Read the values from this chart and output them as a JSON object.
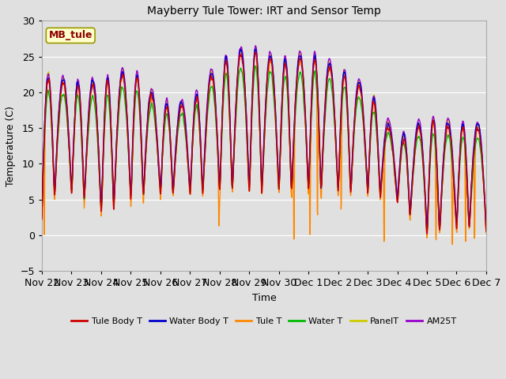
{
  "title": "Mayberry Tule Tower: IRT and Sensor Temp",
  "xlabel": "Time",
  "ylabel": "Temperature (C)",
  "ylim": [
    -5,
    30
  ],
  "series_labels": [
    "Tule Body T",
    "Water Body T",
    "Tule T",
    "Water T",
    "PanelT",
    "AM25T"
  ],
  "series_colors": [
    "#cc0000",
    "#0000cc",
    "#ff8800",
    "#00bb00",
    "#cccc00",
    "#9900cc"
  ],
  "bg_color": "#e0e0e0",
  "watermark_text": "MB_tule",
  "watermark_color": "#8b0000",
  "watermark_bg": "#ffffcc",
  "watermark_edge": "#999900",
  "xtick_labels": [
    "Nov 22",
    "Nov 23",
    "Nov 24",
    "Nov 25",
    "Nov 26",
    "Nov 27",
    "Nov 28",
    "Nov 29",
    "Nov 30",
    "Dec 1",
    "Dec 2",
    "Dec 3",
    "Dec 4",
    "Dec 5",
    "Dec 6",
    "Dec 7"
  ],
  "ytick_vals": [
    -5,
    0,
    5,
    10,
    15,
    20,
    25,
    30
  ],
  "n_days": 15,
  "pts_per_day": 96,
  "day_peaks": [
    22,
    21,
    21,
    23,
    18,
    18,
    24,
    26,
    24,
    25,
    23,
    20,
    13,
    16,
    15
  ],
  "day_mins": [
    4,
    5,
    2,
    4,
    5,
    5,
    5,
    5,
    5,
    5,
    5,
    5,
    4,
    -1,
    0
  ],
  "orange_spike_positions": [
    0.08,
    5.97,
    8.5,
    9.05,
    9.3,
    10.1,
    11.55,
    13.3,
    13.85,
    14.3,
    14.6
  ],
  "orange_spike_depths": [
    -3.5,
    -0.5,
    -4.5,
    -3.0,
    -2.0,
    0.0,
    -4.5,
    -4.0,
    -4.5,
    -4.5,
    -4.0
  ]
}
